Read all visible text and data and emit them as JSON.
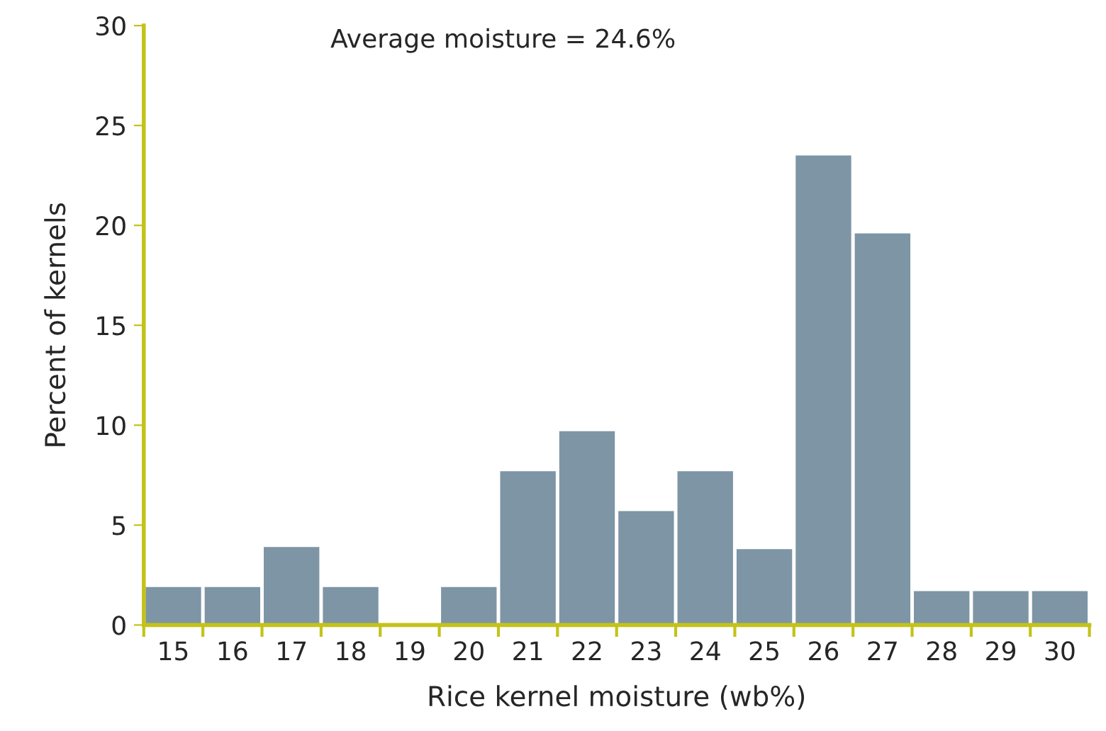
{
  "chart_data": {
    "type": "bar",
    "categories": [
      "15",
      "16",
      "17",
      "18",
      "19",
      "20",
      "21",
      "22",
      "23",
      "24",
      "25",
      "26",
      "27",
      "28",
      "29",
      "30"
    ],
    "values": [
      1.9,
      1.9,
      3.9,
      1.9,
      0,
      1.9,
      7.7,
      9.7,
      5.7,
      7.7,
      3.8,
      23.5,
      19.6,
      1.7,
      1.7,
      1.7
    ],
    "color": "#7d95a5",
    "xlabel": "Rice kernel moisture (wb%)",
    "ylabel": "Percent of kernels",
    "annotations": [
      "Average moisture = 24.6%"
    ],
    "ylim": [
      0,
      30
    ],
    "yticks": [
      0,
      5,
      10,
      15,
      20,
      25,
      30
    ],
    "grid": false,
    "legend": false
  }
}
